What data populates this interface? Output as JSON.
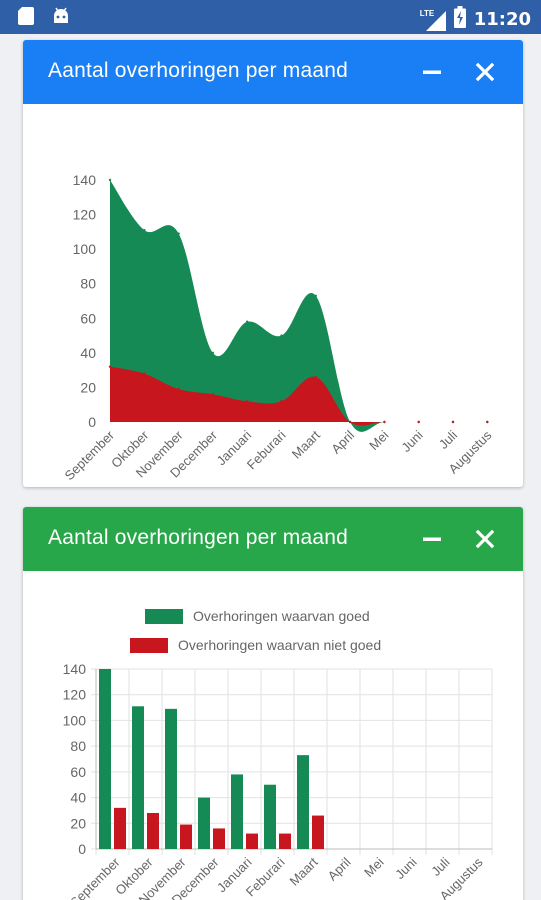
{
  "status_bar": {
    "time": "11:20",
    "network": "LTE",
    "colors": {
      "bg": "#2f5fa7"
    }
  },
  "panels": [
    {
      "title": "Aantal overhoringen per maand",
      "minimize_icon": "minus-icon",
      "close_icon": "close-icon",
      "header_color": "#1a7ef5"
    },
    {
      "title": "Aantal overhoringen per maand",
      "minimize_icon": "minus-icon",
      "close_icon": "close-icon",
      "header_color": "#27a74a"
    }
  ],
  "chart_data": [
    {
      "type": "area",
      "categories": [
        "September",
        "Oktober",
        "November",
        "December",
        "Januari",
        "Feburari",
        "Maart",
        "April",
        "Mei",
        "Juni",
        "Juli",
        "Augustus"
      ],
      "series": [
        {
          "values": [
            140,
            111,
            109,
            40,
            58,
            50,
            73,
            0,
            0,
            0,
            0,
            0
          ],
          "color": "#168a55"
        },
        {
          "values": [
            32,
            28,
            19,
            16,
            12,
            12,
            26,
            0,
            0,
            0,
            0,
            0
          ],
          "color": "#c8161e"
        }
      ],
      "ylim": [
        0,
        140
      ],
      "yticks": [
        0,
        20,
        40,
        60,
        80,
        100,
        120,
        140
      ],
      "grid": false
    },
    {
      "type": "bar",
      "categories": [
        "September",
        "Oktober",
        "November",
        "December",
        "Januari",
        "Feburari",
        "Maart",
        "April",
        "Mei",
        "Juni",
        "Juli",
        "Augustus"
      ],
      "series": [
        {
          "name": "Overhoringen waarvan goed",
          "values": [
            140,
            111,
            109,
            40,
            58,
            50,
            73,
            0,
            0,
            0,
            0,
            0
          ],
          "color": "#168a55"
        },
        {
          "name": "Overhoringen waarvan niet goed",
          "values": [
            32,
            28,
            19,
            16,
            12,
            12,
            26,
            0,
            0,
            0,
            0,
            0
          ],
          "color": "#c8161e"
        }
      ],
      "ylim": [
        0,
        140
      ],
      "yticks": [
        0,
        20,
        40,
        60,
        80,
        100,
        120,
        140
      ],
      "grid": true,
      "legend": "top"
    }
  ]
}
